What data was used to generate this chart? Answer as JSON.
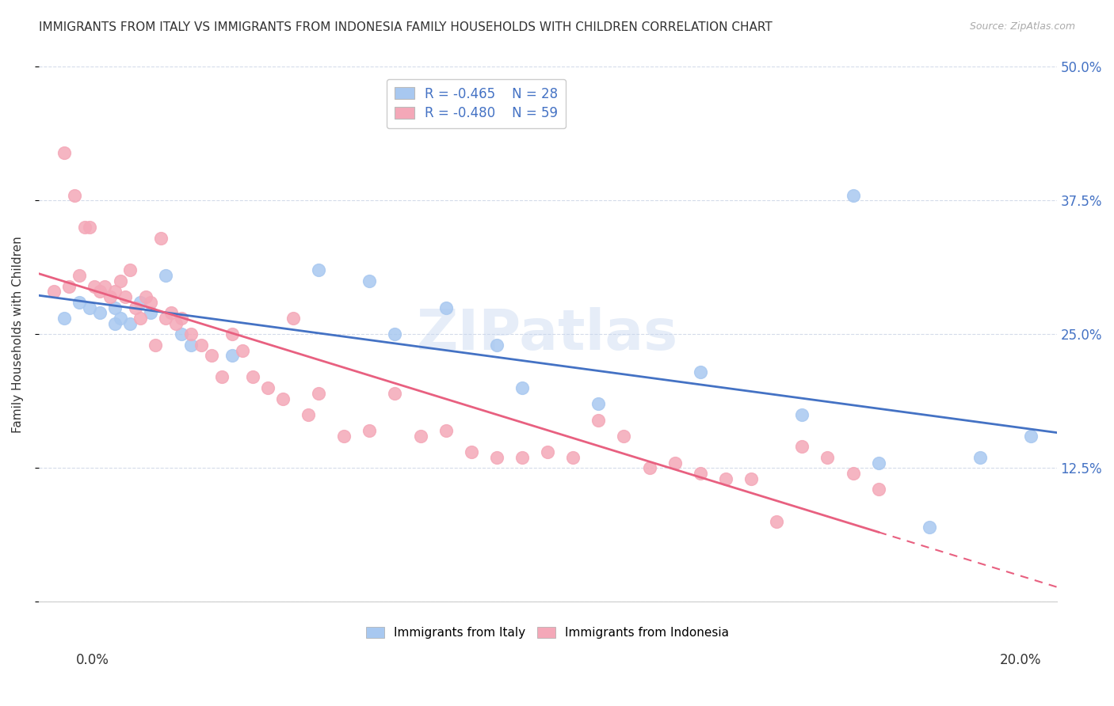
{
  "title": "IMMIGRANTS FROM ITALY VS IMMIGRANTS FROM INDONESIA FAMILY HOUSEHOLDS WITH CHILDREN CORRELATION CHART",
  "source": "Source: ZipAtlas.com",
  "ylabel": "Family Households with Children",
  "italy_R": -0.465,
  "italy_N": 28,
  "indonesia_R": -0.48,
  "indonesia_N": 59,
  "xmin": 0.0,
  "xmax": 0.2,
  "ymin": 0.0,
  "ymax": 0.5,
  "italy_color": "#a8c8f0",
  "indonesia_color": "#f4a8b8",
  "italy_line_color": "#4472c4",
  "indonesia_line_color": "#e86080",
  "grid_color": "#d0d8e8",
  "background_color": "#ffffff",
  "italy_scatter_x": [
    0.005,
    0.008,
    0.01,
    0.012,
    0.015,
    0.015,
    0.016,
    0.018,
    0.02,
    0.022,
    0.025,
    0.028,
    0.03,
    0.038,
    0.055,
    0.065,
    0.07,
    0.08,
    0.09,
    0.095,
    0.11,
    0.13,
    0.15,
    0.16,
    0.165,
    0.175,
    0.185,
    0.195
  ],
  "italy_scatter_y": [
    0.265,
    0.28,
    0.275,
    0.27,
    0.275,
    0.26,
    0.265,
    0.26,
    0.28,
    0.27,
    0.305,
    0.25,
    0.24,
    0.23,
    0.31,
    0.3,
    0.25,
    0.275,
    0.24,
    0.2,
    0.185,
    0.215,
    0.175,
    0.38,
    0.13,
    0.07,
    0.135,
    0.155
  ],
  "indonesia_scatter_x": [
    0.003,
    0.005,
    0.006,
    0.007,
    0.008,
    0.009,
    0.01,
    0.011,
    0.012,
    0.013,
    0.014,
    0.015,
    0.016,
    0.017,
    0.018,
    0.019,
    0.02,
    0.021,
    0.022,
    0.023,
    0.024,
    0.025,
    0.026,
    0.027,
    0.028,
    0.03,
    0.032,
    0.034,
    0.036,
    0.038,
    0.04,
    0.042,
    0.045,
    0.048,
    0.05,
    0.053,
    0.055,
    0.06,
    0.065,
    0.07,
    0.075,
    0.08,
    0.085,
    0.09,
    0.095,
    0.1,
    0.105,
    0.11,
    0.115,
    0.12,
    0.125,
    0.13,
    0.135,
    0.14,
    0.145,
    0.15,
    0.155,
    0.16,
    0.165
  ],
  "indonesia_scatter_y": [
    0.29,
    0.42,
    0.295,
    0.38,
    0.305,
    0.35,
    0.35,
    0.295,
    0.29,
    0.295,
    0.285,
    0.29,
    0.3,
    0.285,
    0.31,
    0.275,
    0.265,
    0.285,
    0.28,
    0.24,
    0.34,
    0.265,
    0.27,
    0.26,
    0.265,
    0.25,
    0.24,
    0.23,
    0.21,
    0.25,
    0.235,
    0.21,
    0.2,
    0.19,
    0.265,
    0.175,
    0.195,
    0.155,
    0.16,
    0.195,
    0.155,
    0.16,
    0.14,
    0.135,
    0.135,
    0.14,
    0.135,
    0.17,
    0.155,
    0.125,
    0.13,
    0.12,
    0.115,
    0.115,
    0.075,
    0.145,
    0.135,
    0.12,
    0.105
  ]
}
